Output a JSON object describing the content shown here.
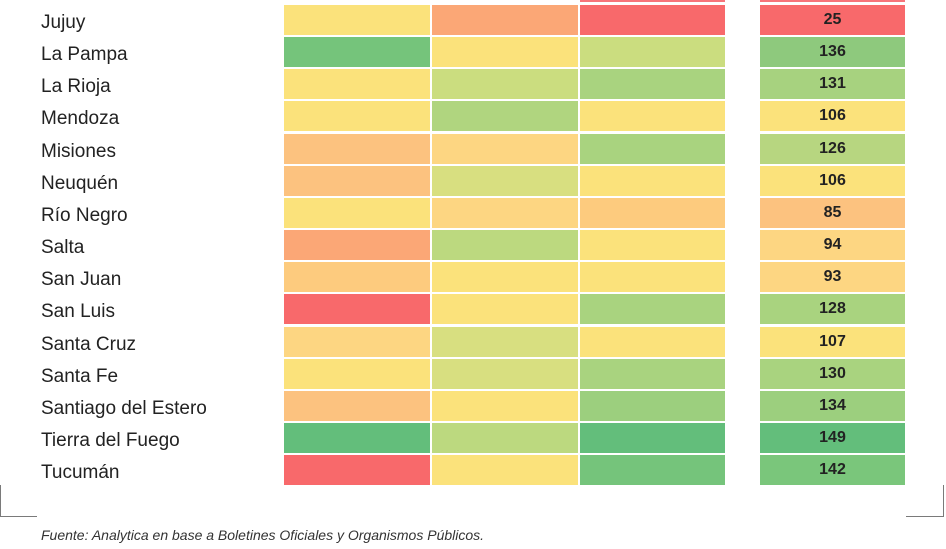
{
  "table": {
    "rows": [
      {
        "name": "Jujuy",
        "colors": [
          "#fbe27b",
          "#fba776",
          "#f8696b"
        ],
        "total": "25",
        "total_color": "#f8696b"
      },
      {
        "name": "La Pampa",
        "colors": [
          "#75c47b",
          "#fbe27b",
          "#cbdd7f"
        ],
        "total": "136",
        "total_color": "#8ec97d"
      },
      {
        "name": "La Rioja",
        "colors": [
          "#fbe27b",
          "#cbdd7f",
          "#a9d37f"
        ],
        "total": "131",
        "total_color": "#a7d27f"
      },
      {
        "name": "Mendoza",
        "colors": [
          "#fbe27b",
          "#b0d57f",
          "#fbe27b"
        ],
        "total": "106",
        "total_color": "#fbe27b"
      },
      {
        "name": "Misiones",
        "colors": [
          "#fcc27f",
          "#fdd682",
          "#a9d37f"
        ],
        "total": "126",
        "total_color": "#b7d680"
      },
      {
        "name": "Neuquén",
        "colors": [
          "#fcc27f",
          "#d8df80",
          "#fbe27b"
        ],
        "total": "106",
        "total_color": "#fbe27b"
      },
      {
        "name": "Río Negro",
        "colors": [
          "#fbe27b",
          "#fdd682",
          "#fdcb7e"
        ],
        "total": "85",
        "total_color": "#fcc27f"
      },
      {
        "name": "Salta",
        "colors": [
          "#fba776",
          "#bcd97f",
          "#fbe27b"
        ],
        "total": "94",
        "total_color": "#fdd682"
      },
      {
        "name": "San Juan",
        "colors": [
          "#fdcb7e",
          "#fbe27b",
          "#fbe27b"
        ],
        "total": "93",
        "total_color": "#fdd682"
      },
      {
        "name": "San Luis",
        "colors": [
          "#f8696b",
          "#fbe27b",
          "#a9d37f"
        ],
        "total": "128",
        "total_color": "#a9d37f"
      },
      {
        "name": "Santa Cruz",
        "colors": [
          "#fdd682",
          "#d8df80",
          "#fbe27b"
        ],
        "total": "107",
        "total_color": "#fbe27b"
      },
      {
        "name": "Santa Fe",
        "colors": [
          "#fbe27b",
          "#d8df80",
          "#a9d37f"
        ],
        "total": "130",
        "total_color": "#a9d37f"
      },
      {
        "name": "Santiago del Estero",
        "colors": [
          "#fcc27f",
          "#fbe27b",
          "#9ccf7e"
        ],
        "total": "134",
        "total_color": "#9ccf7e"
      },
      {
        "name": "Tierra del Fuego",
        "colors": [
          "#63be7b",
          "#bcd97f",
          "#63be7b"
        ],
        "total": "149",
        "total_color": "#63be7b"
      },
      {
        "name": "Tucumán",
        "colors": [
          "#f8696b",
          "#fbe27b",
          "#75c47b"
        ],
        "total": "142",
        "total_color": "#7ac67b"
      }
    ]
  },
  "source": "Fuente: Analytica en base a Boletines Oficiales y Organismos Públicos."
}
